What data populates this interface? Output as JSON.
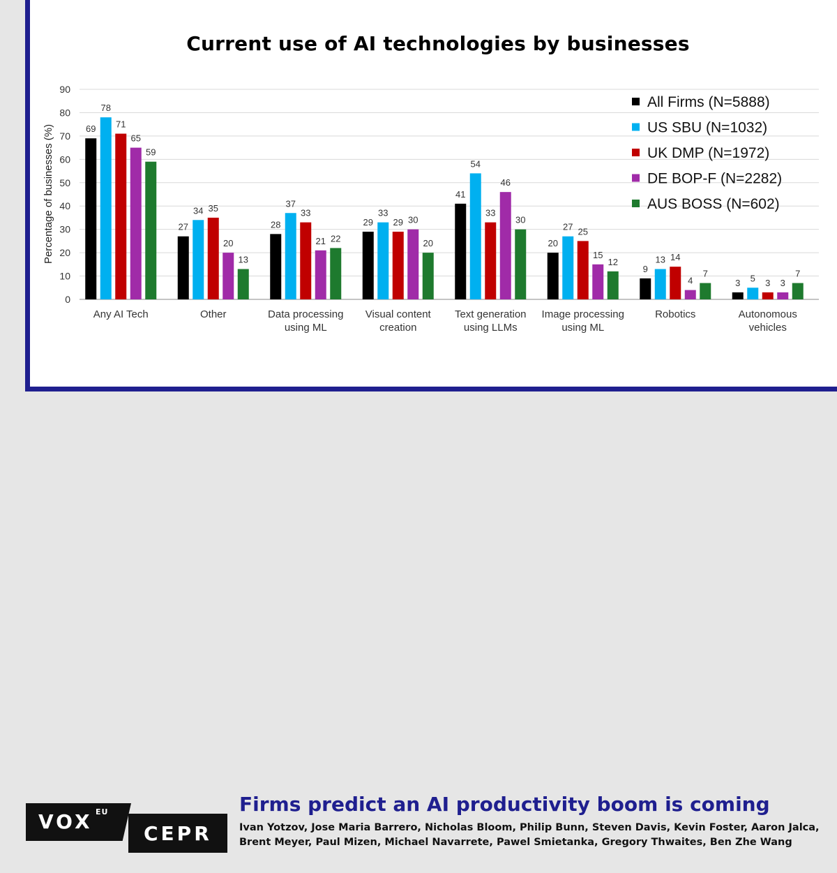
{
  "title": "Current use of AI technologies by businesses",
  "chart_data": {
    "type": "bar",
    "title": "Current use of AI technologies by businesses",
    "ylabel": "Percentage of businesses (%)",
    "xlabel": "",
    "ylim": [
      0,
      90
    ],
    "yticks": [
      "0",
      "10",
      "20",
      "30",
      "40",
      "50",
      "60",
      "70",
      "80",
      "90"
    ],
    "categories": [
      [
        "Any AI Tech"
      ],
      [
        "Other"
      ],
      [
        "Data processing",
        "using ML"
      ],
      [
        "Visual content",
        "creation"
      ],
      [
        "Text generation",
        "using LLMs"
      ],
      [
        "Image processing",
        "using ML"
      ],
      [
        "Robotics"
      ],
      [
        "Autonomous",
        "vehicles"
      ]
    ],
    "series": [
      {
        "name": "All Firms (N=5888)",
        "color": "#000000",
        "values": [
          69,
          27,
          28,
          29,
          41,
          20,
          9,
          3
        ]
      },
      {
        "name": "US SBU (N=1032)",
        "color": "#00b0f0",
        "values": [
          78,
          34,
          37,
          33,
          54,
          27,
          13,
          5
        ]
      },
      {
        "name": "UK DMP (N=1972)",
        "color": "#c00000",
        "values": [
          71,
          35,
          33,
          29,
          33,
          25,
          14,
          3
        ]
      },
      {
        "name": "DE BOP-F (N=2282)",
        "color": "#a02ba8",
        "values": [
          65,
          20,
          21,
          30,
          46,
          15,
          4,
          3
        ]
      },
      {
        "name": "AUS BOSS (N=602)",
        "color": "#1e7a2e",
        "values": [
          59,
          13,
          22,
          20,
          30,
          12,
          7,
          7
        ]
      }
    ],
    "legend_position": "top-right"
  },
  "footer": {
    "logo_vox": "VOX",
    "logo_eu": "EU",
    "logo_cepr": "CEPR",
    "headline": "Firms predict an AI productivity boom is coming",
    "authors": "Ivan Yotzov, Jose Maria Barrero, Nicholas Bloom, Philip Bunn, Steven Davis, Kevin Foster, Aaron Jalca, Brent Meyer, Paul Mizen, Michael Navarrete, Pawel Smietanka, Gregory Thwaites, Ben Zhe Wang"
  },
  "colors": {
    "brand_blue": "#1f1f8f",
    "background": "#e6e6e6"
  }
}
